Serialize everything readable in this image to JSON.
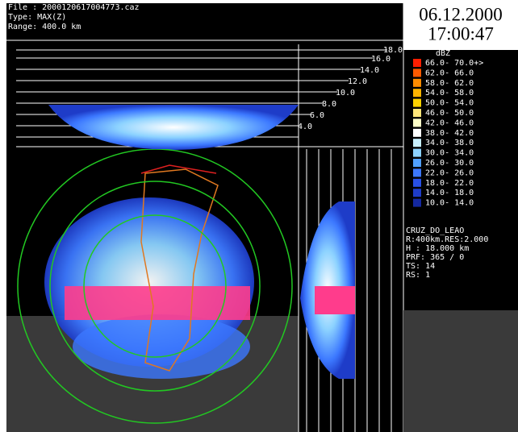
{
  "header": {
    "file": "File : 2000120617004773.caz",
    "type": "Type: MAX(Z)",
    "range": "Range: 400.0 km"
  },
  "clock": {
    "date": "06.12.2000",
    "time": "17:00:47"
  },
  "legend": {
    "unit": "dBZ",
    "items": [
      {
        "label": "66.0- 70.0+>",
        "color": "#ff1e00"
      },
      {
        "label": "62.0- 66.0",
        "color": "#ff5a00"
      },
      {
        "label": "58.0- 62.0",
        "color": "#ff8c00"
      },
      {
        "label": "54.0- 58.0",
        "color": "#ffb400"
      },
      {
        "label": "50.0- 54.0",
        "color": "#ffd200"
      },
      {
        "label": "46.0- 50.0",
        "color": "#ffe678"
      },
      {
        "label": "42.0- 46.0",
        "color": "#ffffc8"
      },
      {
        "label": "38.0- 42.0",
        "color": "#ffffff"
      },
      {
        "label": "34.0- 38.0",
        "color": "#c8f0ff"
      },
      {
        "label": "30.0- 34.0",
        "color": "#8cd2ff"
      },
      {
        "label": "26.0- 30.0",
        "color": "#50a0ff"
      },
      {
        "label": "22.0- 26.0",
        "color": "#3c78ff"
      },
      {
        "label": "18.0- 22.0",
        "color": "#2850e6"
      },
      {
        "label": "14.0- 18.0",
        "color": "#1e3cc8"
      },
      {
        "label": "10.0- 14.0",
        "color": "#1428a0"
      }
    ]
  },
  "height_scale": [
    "18.0",
    "16.0",
    "14.0",
    "12.0",
    "10.0",
    "8.0",
    "6.0",
    "4.0"
  ],
  "station": [
    "CRUZ_DO_LEAO",
    "R:400km.RES:2.000",
    "H  : 18.000 km",
    "PRF:  365 /    0",
    "TS: 14",
    "RS: 1"
  ]
}
